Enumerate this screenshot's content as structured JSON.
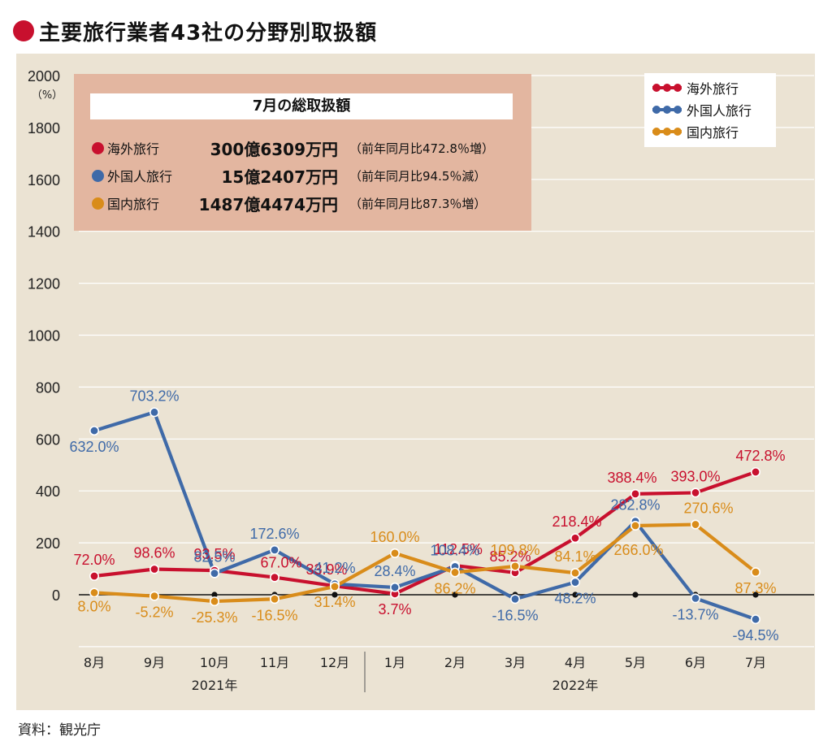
{
  "title": "主要旅行業者43社の分野別取扱額",
  "source": "資料：観光庁",
  "summary": {
    "heading": "7月の総取扱額",
    "rows": [
      {
        "label": "海外旅行",
        "amount": "300億6309万円",
        "change": "（前年同月比472.8％増）",
        "color": "#c8102e"
      },
      {
        "label": "外国人旅行",
        "amount": "15億2407万円",
        "change": "（前年同月比94.5％減）",
        "color": "#3f6aa8"
      },
      {
        "label": "国内旅行",
        "amount": "1487億4474万円",
        "change": "（前年同月比87.3％増）",
        "color": "#d98c1a"
      }
    ]
  },
  "chart_data": {
    "type": "line",
    "categories": [
      "8月",
      "9月",
      "10月",
      "11月",
      "12月",
      "1月",
      "2月",
      "3月",
      "4月",
      "5月",
      "6月",
      "7月"
    ],
    "year_groups": [
      {
        "label": "2021年",
        "from": 0,
        "to": 4
      },
      {
        "label": "2022年",
        "from": 5,
        "to": 11
      }
    ],
    "ylabel": "（%）",
    "ylim": [
      -200,
      2000
    ],
    "yticks": [
      0,
      200,
      400,
      600,
      800,
      1000,
      1200,
      1400,
      1600,
      1800,
      2000
    ],
    "grid": true,
    "legend_position": "top-right",
    "series": [
      {
        "name": "海外旅行",
        "color": "#c8102e",
        "values": [
          72.0,
          98.6,
          93.5,
          67.0,
          33.9,
          3.7,
          112.5,
          85.2,
          218.4,
          388.4,
          393.0,
          472.8
        ],
        "labels": [
          "72.0%",
          "98.6%",
          "93.5%",
          "67.0%",
          "33.9%",
          "3.7%",
          "112.5%",
          "85.2%",
          "218.4%",
          "388.4%",
          "393.0%",
          "472.8%"
        ]
      },
      {
        "name": "外国人旅行",
        "color": "#3f6aa8",
        "values": [
          632.0,
          703.2,
          82.5,
          172.6,
          41.2,
          28.4,
          108.4,
          -16.5,
          48.2,
          282.8,
          -13.7,
          -94.5
        ],
        "labels": [
          "632.0%",
          "703.2%",
          "82.5%",
          "172.6%",
          "41.2%",
          "28.4%",
          "108.4%",
          "-16.5%",
          "48.2%",
          "282.8%",
          "-13.7%",
          "-94.5%"
        ]
      },
      {
        "name": "国内旅行",
        "color": "#d98c1a",
        "values": [
          8.0,
          -5.2,
          -25.3,
          -16.5,
          31.4,
          160.0,
          86.2,
          109.8,
          84.1,
          266.0,
          270.6,
          87.3
        ],
        "labels": [
          "8.0%",
          "-5.2%",
          "-25.3%",
          "-16.5%",
          "31.4%",
          "160.0%",
          "86.2%",
          "109.8%",
          "84.1%",
          "266.0%",
          "270.6%",
          "87.3%"
        ]
      }
    ]
  }
}
